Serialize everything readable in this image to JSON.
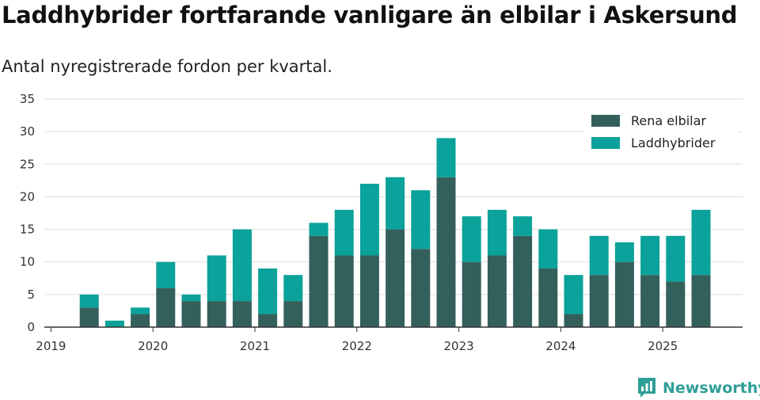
{
  "title": "Laddhybrider fortfarande vanligare än elbilar i Askersund",
  "subtitle": "Antal nyregistrerade fordon per kvartal.",
  "brand": "Newsworthy",
  "colors": {
    "elbilar": "#34605c",
    "laddhybrider": "#0aa29a",
    "grid": "#dddddd",
    "axis": "#333333"
  },
  "chart_data": {
    "type": "bar",
    "stacked": true,
    "title": "Laddhybrider fortfarande vanligare än elbilar i Askersund",
    "subtitle": "Antal nyregistrerade fordon per kvartal.",
    "categories": [
      "2019-Q2",
      "2019-Q3",
      "2019-Q4",
      "2020-Q1",
      "2020-Q2",
      "2020-Q3",
      "2020-Q4",
      "2021-Q1",
      "2021-Q2",
      "2021-Q3",
      "2021-Q4",
      "2022-Q1",
      "2022-Q2",
      "2022-Q3",
      "2022-Q4",
      "2023-Q1",
      "2023-Q2",
      "2023-Q3",
      "2023-Q4",
      "2024-Q1",
      "2024-Q2",
      "2024-Q3",
      "2024-Q4",
      "2025-Q1",
      "2025-Q2"
    ],
    "series": [
      {
        "name": "Rena elbilar",
        "values": [
          3,
          0,
          2,
          6,
          4,
          4,
          4,
          2,
          4,
          14,
          11,
          11,
          15,
          12,
          23,
          10,
          11,
          14,
          9,
          2,
          8,
          10,
          8,
          7,
          8
        ]
      },
      {
        "name": "Laddhybrider",
        "values": [
          2,
          1,
          1,
          4,
          1,
          7,
          11,
          7,
          4,
          2,
          7,
          11,
          8,
          9,
          6,
          7,
          7,
          3,
          6,
          6,
          6,
          3,
          6,
          7,
          10
        ]
      }
    ],
    "x_tick_labels": [
      "2019",
      "2020",
      "2021",
      "2022",
      "2023",
      "2024",
      "2025"
    ],
    "y_ticks": [
      0,
      5,
      10,
      15,
      20,
      25,
      30,
      35
    ],
    "ylim": [
      0,
      35
    ],
    "grid": true,
    "legend": "top-right"
  }
}
